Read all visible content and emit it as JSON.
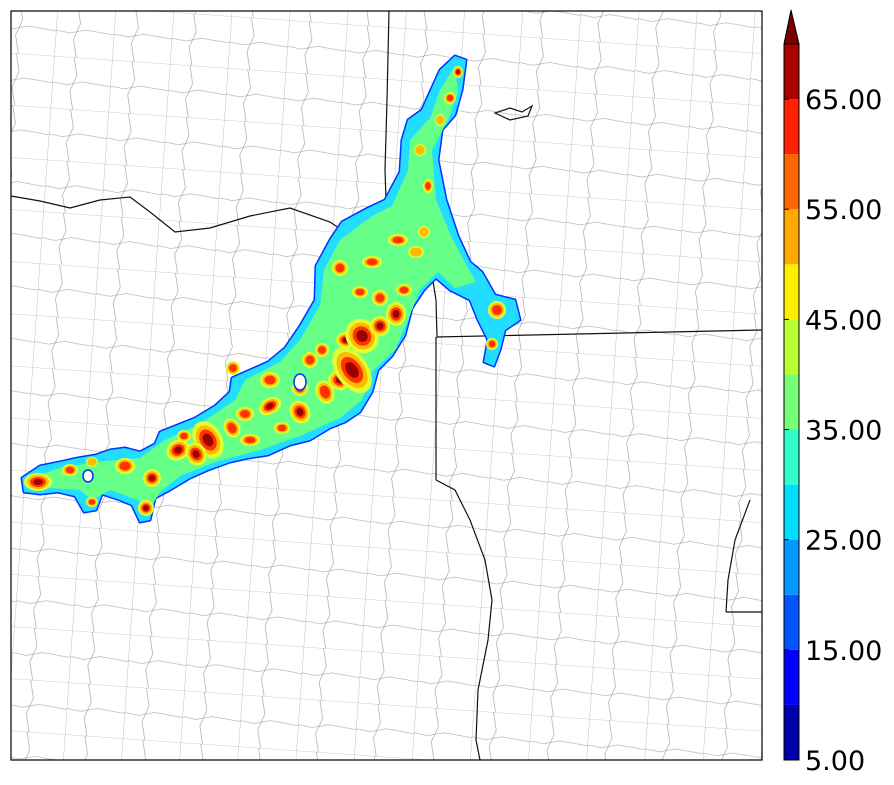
{
  "colorbar": {
    "tick_labels": [
      "5.00",
      "15.00",
      "25.00",
      "35.00",
      "45.00",
      "55.00",
      "65.00"
    ],
    "bins": [
      {
        "min": 5,
        "max": 10,
        "color": "#0000aa"
      },
      {
        "min": 10,
        "max": 15,
        "color": "#0000ff"
      },
      {
        "min": 15,
        "max": 20,
        "color": "#0055ff"
      },
      {
        "min": 20,
        "max": 25,
        "color": "#0099ff"
      },
      {
        "min": 25,
        "max": 30,
        "color": "#00ddff"
      },
      {
        "min": 30,
        "max": 35,
        "color": "#33ffcc"
      },
      {
        "min": 35,
        "max": 40,
        "color": "#77ff77"
      },
      {
        "min": 40,
        "max": 45,
        "color": "#bbff33"
      },
      {
        "min": 45,
        "max": 50,
        "color": "#ffee00"
      },
      {
        "min": 50,
        "max": 55,
        "color": "#ffaa00"
      },
      {
        "min": 55,
        "max": 60,
        "color": "#ff6600"
      },
      {
        "min": 60,
        "max": 65,
        "color": "#ff2200"
      },
      {
        "min": 65,
        "max": 70,
        "color": "#aa0000"
      }
    ],
    "over_color": "#7a0000",
    "extend": "max"
  },
  "map": {
    "boundaries": [
      "county lines",
      "state lines"
    ],
    "field_colors": {
      "edge": "#0033ff",
      "outer": "#22ddff",
      "base": "#66ff88",
      "mid": "#ddff33",
      "warm": "#ffbb00",
      "hot": "#ff3300",
      "core": "#990000"
    }
  }
}
